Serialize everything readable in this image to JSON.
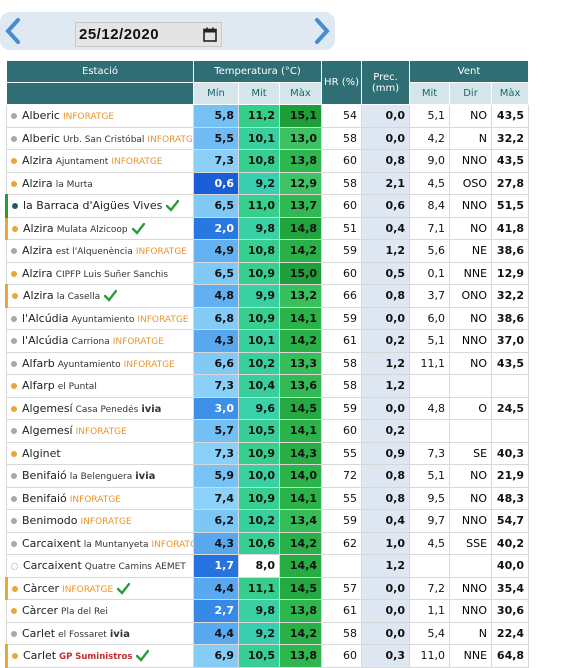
{
  "header": {
    "date": "25/12/2020"
  },
  "table": {
    "columns": {
      "station": "Estació",
      "temperature": "Temperatura (°C)",
      "humidity": "HR (%)",
      "precipitation": "Prec. (mm)",
      "wind": "Vent",
      "sub": [
        "Mín",
        "Mit",
        "Màx",
        "Mit",
        "Dir",
        "Màx"
      ]
    },
    "rows": [
      {
        "station": "Alberic",
        "network": "INFORATGE",
        "dot": "gray",
        "check": false,
        "values": [
          "5,8",
          "11,2",
          "15,1",
          54,
          "0,0",
          "5,1",
          "NO",
          "43,5"
        ]
      },
      {
        "station": "Alberic",
        "place": "Urb. San Cristóbal",
        "network": "INFORATGE",
        "dot": "gray",
        "check": false,
        "values": [
          "5,5",
          "10,1",
          "13,0",
          58,
          "0,0",
          "4,2",
          "N",
          "32,2"
        ]
      },
      {
        "station": "Alzira",
        "place": "Ajuntament",
        "network": "INFORATGE",
        "dot": "orange",
        "check": false,
        "values": [
          "7,3",
          "10,8",
          "13,8",
          60,
          "0,8",
          "9,0",
          "NNO",
          "43,5"
        ]
      },
      {
        "station": "Alzira",
        "place": "la Murta",
        "dot": "orange",
        "check": false,
        "values": [
          "0,6",
          "9,2",
          "12,9",
          58,
          "2,1",
          "4,5",
          "OSO",
          "27,8"
        ]
      },
      {
        "station": "la Barraca d'Aigües Vives",
        "dot": "teal",
        "check": true,
        "values": [
          "6,5",
          "11,0",
          "13,7",
          60,
          "0,6",
          "8,4",
          "NNO",
          "51,5"
        ]
      },
      {
        "station": "Alzira",
        "place": "Mulata Alzicoop",
        "dot": "orange",
        "check": true,
        "values": [
          "2,0",
          "9,8",
          "14,8",
          51,
          "0,4",
          "7,1",
          "NO",
          "41,8"
        ]
      },
      {
        "station": "Alzira",
        "place": "est l'Alquenència",
        "network": "INFORATGE",
        "dot": "gray",
        "check": false,
        "values": [
          "4,9",
          "10,8",
          "14,2",
          59,
          "1,2",
          "5,6",
          "NE",
          "38,6"
        ]
      },
      {
        "station": "Alzira",
        "place": "CIPFP Luis Suñer Sanchis",
        "dot": "orange",
        "check": false,
        "values": [
          "6,5",
          "10,9",
          "15,0",
          60,
          "0,5",
          "0,1",
          "NNE",
          "12,9"
        ]
      },
      {
        "station": "Alzira",
        "place": "la Casella",
        "dot": "orange",
        "check": true,
        "values": [
          "4,8",
          "9,9",
          "13,2",
          66,
          "0,8",
          "3,7",
          "ONO",
          "32,2"
        ]
      },
      {
        "station": "l'Alcúdia",
        "place": "Ayuntamiento",
        "network": "INFORATGE",
        "dot": "gray",
        "check": false,
        "values": [
          "6,8",
          "10,9",
          "14,1",
          59,
          "0,0",
          "6,0",
          "NO",
          "38,6"
        ]
      },
      {
        "station": "l'Alcúdia",
        "place": "Carriona",
        "network": "INFORATGE",
        "dot": "gray",
        "check": false,
        "values": [
          "4,3",
          "10,1",
          "14,2",
          61,
          "0,2",
          "5,1",
          "NNO",
          "37,0"
        ]
      },
      {
        "station": "Alfarb",
        "place": "Ayuntamiento",
        "network": "INFORATGE",
        "dot": "gray",
        "check": false,
        "values": [
          "6,6",
          "10,2",
          "13,3",
          58,
          "1,2",
          "11,1",
          "NO",
          "43,5"
        ]
      },
      {
        "station": "Alfarp",
        "place": "el Puntal",
        "dot": "orange",
        "check": false,
        "values": [
          "7,3",
          "10,4",
          "13,6",
          58,
          "1,2",
          null,
          null,
          null
        ]
      },
      {
        "station": "Algemesí",
        "place": "Casa Penedés",
        "network": "ivia",
        "dot": "orange",
        "check": false,
        "values": [
          "3,0",
          "9,6",
          "14,5",
          59,
          "0,0",
          "4,8",
          "O",
          "24,5"
        ]
      },
      {
        "station": "Algemesí",
        "network": "INFORATGE",
        "dot": "gray",
        "check": false,
        "values": [
          "5,7",
          "10,5",
          "14,1",
          60,
          "0,2",
          null,
          null,
          null
        ]
      },
      {
        "station": "Alginet",
        "dot": "orange",
        "check": false,
        "values": [
          "7,3",
          "10,9",
          "14,3",
          55,
          "0,9",
          "7,3",
          "SE",
          "40,3"
        ]
      },
      {
        "station": "Benifaió",
        "place": "la Belenguera",
        "network": "ivia",
        "dot": "gray",
        "check": false,
        "values": [
          "5,9",
          "10,0",
          "14,0",
          72,
          "0,8",
          "5,1",
          "NO",
          "21,9"
        ]
      },
      {
        "station": "Benifaió",
        "network": "INFORATGE",
        "dot": "gray",
        "check": false,
        "values": [
          "7,4",
          "10,9",
          "14,1",
          55,
          "0,8",
          "9,5",
          "NO",
          "48,3"
        ]
      },
      {
        "station": "Benimodo",
        "network": "INFORATGE",
        "dot": "gray",
        "check": false,
        "values": [
          "6,2",
          "10,2",
          "13,4",
          59,
          "0,4",
          "9,7",
          "NNO",
          "54,7"
        ]
      },
      {
        "station": "Carcaixent",
        "place": "la Muntanyeta",
        "network": "INFORATGE",
        "dot": "gray",
        "check": false,
        "values": [
          "4,3",
          "10,6",
          "14,2",
          62,
          "1,0",
          "4,5",
          "SSE",
          "40,2"
        ]
      },
      {
        "station": "Carcaixent",
        "place": "Quatre Camins",
        "network": "AEMET",
        "dot": "none",
        "check": false,
        "values": [
          "1,7",
          "8,0",
          "14,4",
          null,
          "1,2",
          null,
          null,
          "40,0"
        ]
      },
      {
        "station": "Càrcer",
        "network": "INFORATGE",
        "dot": "orange",
        "check": true,
        "values": [
          "4,4",
          "11,1",
          "14,5",
          57,
          "0,0",
          "7,2",
          "NNO",
          "35,4"
        ]
      },
      {
        "station": "Càrcer",
        "place": "Pla del Rei",
        "dot": "orange",
        "check": false,
        "values": [
          "2,7",
          "9,8",
          "13,8",
          61,
          "0,0",
          "1,1",
          "NNO",
          "30,6"
        ]
      },
      {
        "station": "Carlet",
        "place": "el Fossaret",
        "network": "ivia",
        "dot": "gray",
        "check": false,
        "values": [
          "4,4",
          "9,2",
          "14,2",
          58,
          "0,0",
          "5,4",
          "N",
          "22,4"
        ]
      },
      {
        "station": "Carlet",
        "network": "GP Suministros",
        "dot": "orange",
        "check": true,
        "values": [
          "6,9",
          "10,5",
          "13,8",
          60,
          "0,3",
          "11,0",
          "NNE",
          "64,8"
        ]
      }
    ]
  }
}
